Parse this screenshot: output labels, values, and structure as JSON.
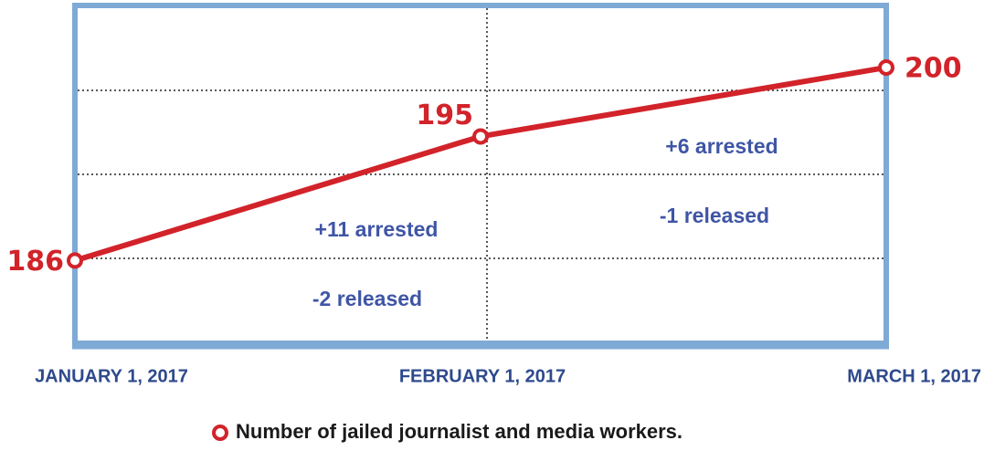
{
  "chart_data": {
    "type": "line",
    "categories": [
      "JANUARY 1, 2017",
      "FEBRUARY 1, 2017",
      "MARCH 1, 2017"
    ],
    "series": [
      {
        "name": "Number of jailed journalist and media workers.",
        "color": "#d2232a",
        "values": [
          186,
          195,
          200
        ]
      }
    ],
    "ylim": [
      180,
      204.5
    ],
    "grid": true,
    "annotations": [
      "+11 arrested",
      "-2 released",
      "+6 arrested",
      "-1 released"
    ]
  }
}
